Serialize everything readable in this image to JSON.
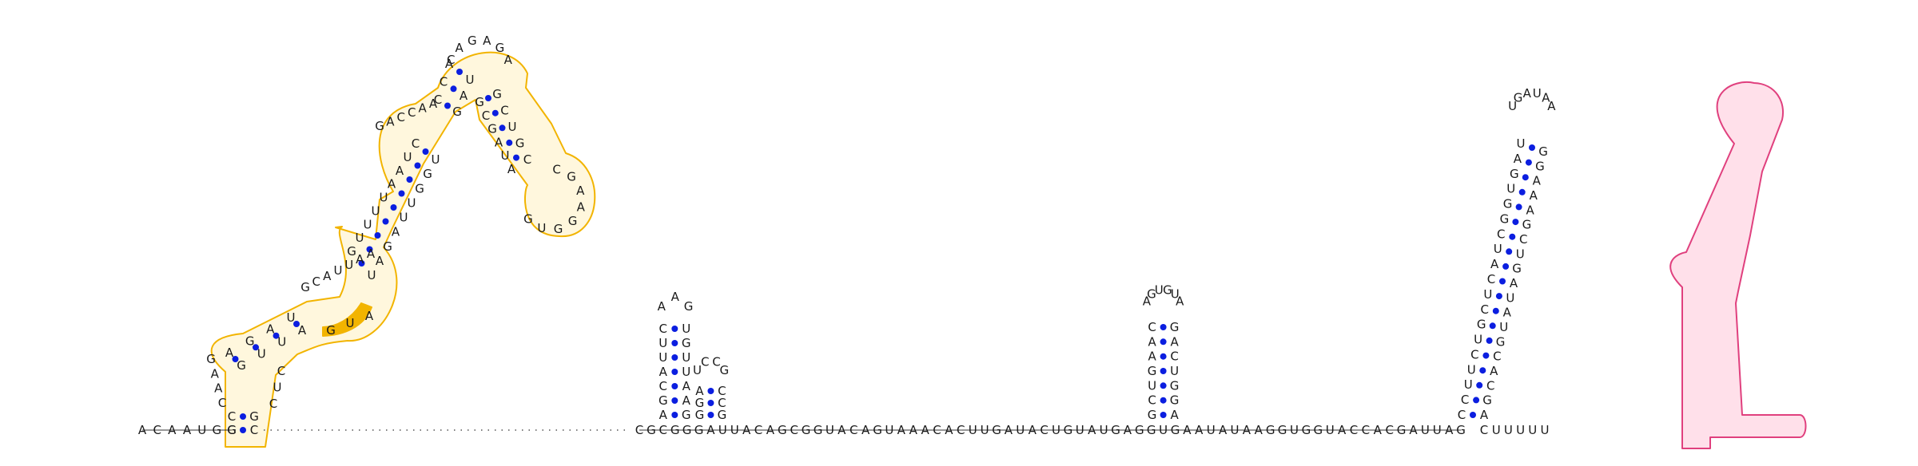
{
  "colors": {
    "base_text": "#1a1a1a",
    "backbone": "#303030",
    "pair_dot": "#0b1ee0",
    "orange_outline": "#f2b400",
    "orange_fill": "#fff7dd",
    "pink_outline": "#e0407e",
    "pink_fill": "#ffe0ea"
  },
  "sequence": {
    "five_prime_tail": "ACAAUGG",
    "linker_1": "UGAAUAUAAGGUGGUACCACGAUUAG",
    "three_prime_tail": "CUUUUU",
    "mid_linker": "AUUACAGCGGUACAGUAAACACUUGAUACUGUAUGAGG"
  },
  "structures": {
    "orange_domain": {
      "outline": "orange",
      "outer_stem_5p": "GC",
      "outer_stem_3p": "GC",
      "loop_a_5p": "CAAG",
      "loop_a_3p": "CUC",
      "inner_helix_5p": "AGAU",
      "inner_helix_3p": "GUUA",
      "big_loop_top": "GCAUUAA",
      "highlighted_segment": "GUA",
      "upper_helix_5p": "GUUUUAAUC",
      "upper_helix_3p": "UAGAUUGGU",
      "mid_loop": "GACCAA",
      "apex_5p": "CCA",
      "apex_loop": "CAGAGA",
      "apex_3p": "GAU",
      "right_arm_5p": "GCUGC",
      "right_arm_3p": "GCGAUA",
      "right_loop": "CGAAGGUG"
    },
    "hairpin_1": {
      "stem_5p": "AGCAUUC",
      "stem_3p": "UGUUAAG",
      "loop": "AAG"
    },
    "hairpin_2": {
      "stem_5p": "GGA",
      "stem_3p": "CCG",
      "loop": "UCCG"
    },
    "hairpin_3": {
      "stem_5p": "GCUGAAC",
      "stem_3p": "GACUGGA",
      "loop": "AGUGUA"
    },
    "terminator": {
      "outline": "pink",
      "stem_5p": "CCUUCUGCUCAUCGGUGAU",
      "stem_3p": "GGAAAGCUGAUAUGCACGA",
      "loop": "UGAUAA"
    }
  }
}
